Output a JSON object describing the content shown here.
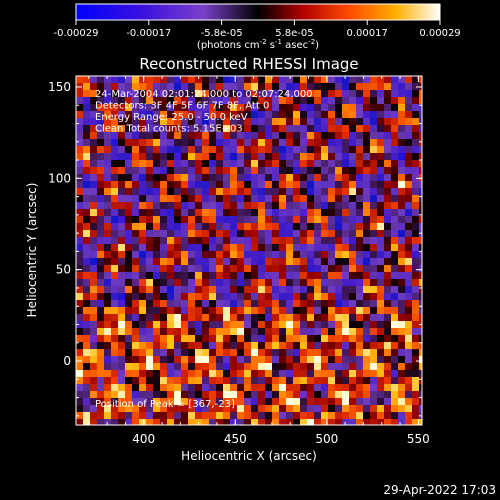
{
  "chart_data": {
    "type": "heatmap",
    "title": "Reconstructed RHESSI Image",
    "xlabel": "Heliocentric X (arcsec)",
    "ylabel": "Heliocentric Y (arcsec)",
    "xlim": [
      363,
      552
    ],
    "ylim": [
      -35,
      156
    ],
    "x_ticks": [
      400,
      450,
      500,
      550
    ],
    "y_ticks": [
      0,
      50,
      100,
      150
    ],
    "colorbar": {
      "ticks": [
        "-0.00029",
        "-0.00017",
        "-5.8e-05",
        "5.8e-05",
        "0.00017",
        "0.00029"
      ],
      "range": [
        -0.00029,
        0.00029
      ],
      "unit_prefix": "(photons cm",
      "unit_exp1": "-2",
      "unit_mid1": " s",
      "unit_exp2": "-1",
      "unit_mid2": " asec",
      "unit_exp3": "-2",
      "unit_suffix": ")"
    },
    "annotations": [
      "24-Mar-2004 02:01:24.000 to 02:07:24.000",
      "Detectors: 3F 4F 5F 6F 7F 8F, Att 0",
      "Energy Range: 25.0 - 50.0 keV",
      "Clean     Total counts: 5.15E+03"
    ],
    "peak_label": "Position of Peak = [367,-23]",
    "colors": {
      "low": "#0000ff",
      "mid_low": "#8040c0",
      "mid": "#000000",
      "mid_high": "#ff4000",
      "high": "#ffffff"
    }
  },
  "footer": {
    "timestamp": "29-Apr-2022 17:03"
  }
}
